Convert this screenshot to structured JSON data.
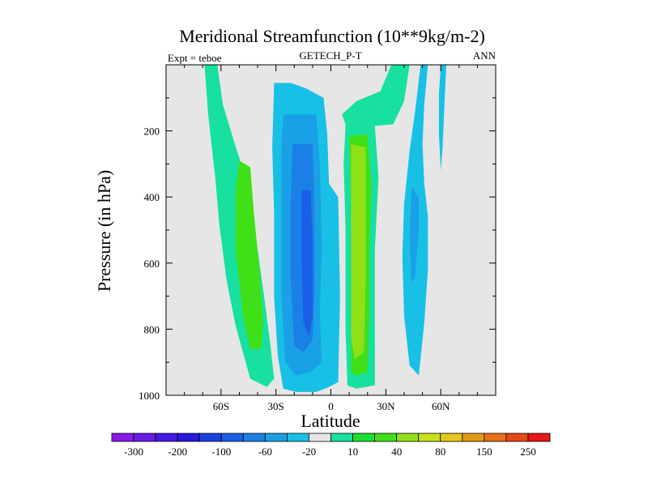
{
  "chart_data": {
    "type": "heatmap",
    "title": "Meridional Streamfunction (10**9kg/m-2)",
    "left_string": "Expt = teboe",
    "center_string": "GETECH_P-T",
    "right_string": "ANN",
    "xlabel": "Latitude",
    "ylabel": "Pressure (in hPa)",
    "xlim": [
      -90,
      90
    ],
    "ylim": [
      1000,
      0
    ],
    "x_ticks": [
      {
        "value": -60,
        "label": "60S"
      },
      {
        "value": -30,
        "label": "30S"
      },
      {
        "value": 0,
        "label": "0"
      },
      {
        "value": 30,
        "label": "30N"
      },
      {
        "value": 60,
        "label": "60N"
      }
    ],
    "y_ticks": [
      {
        "value": 200,
        "label": "200"
      },
      {
        "value": 400,
        "label": "400"
      },
      {
        "value": 600,
        "label": "600"
      },
      {
        "value": 800,
        "label": "800"
      },
      {
        "value": 1000,
        "label": "1000"
      }
    ],
    "background_color": "#e6e6e6",
    "colorbar": {
      "colors": [
        "#8a18e8",
        "#6a1ae8",
        "#4818e6",
        "#2818e0",
        "#1a40e0",
        "#1a60e6",
        "#1a80e6",
        "#1aa0e6",
        "#1ac0e6",
        "#e6e6e6",
        "#18e0a0",
        "#18e030",
        "#40e018",
        "#90e018",
        "#c8e018",
        "#e6c818",
        "#e69818",
        "#e67018",
        "#e64818",
        "#e61818"
      ],
      "labels": [
        {
          "boundary": 1,
          "label": "-300"
        },
        {
          "boundary": 3,
          "label": "-200"
        },
        {
          "boundary": 5,
          "label": "-100"
        },
        {
          "boundary": 7,
          "label": "-60"
        },
        {
          "boundary": 9,
          "label": "-20"
        },
        {
          "boundary": 11,
          "label": "10"
        },
        {
          "boundary": 13,
          "label": "40"
        },
        {
          "boundary": 15,
          "label": "80"
        },
        {
          "boundary": 17,
          "label": "150"
        },
        {
          "boundary": 19,
          "label": "250"
        }
      ]
    },
    "regions": [
      {
        "name": "sh-outer-band",
        "color": "#18e0a0",
        "points": [
          [
            -69,
            0
          ],
          [
            -62,
            0
          ],
          [
            -59,
            120
          ],
          [
            -53,
            230
          ],
          [
            -45,
            370
          ],
          [
            -40,
            560
          ],
          [
            -36,
            720
          ],
          [
            -33,
            850
          ],
          [
            -31,
            950
          ],
          [
            -35,
            975
          ],
          [
            -44,
            950
          ],
          [
            -52,
            790
          ],
          [
            -57,
            650
          ],
          [
            -61,
            480
          ],
          [
            -63,
            350
          ],
          [
            -65,
            250
          ],
          [
            -67,
            150
          ]
        ]
      },
      {
        "name": "sh-inner-core",
        "color": "#40e018",
        "points": [
          [
            -50,
            290
          ],
          [
            -44,
            310
          ],
          [
            -42,
            450
          ],
          [
            -39,
            620
          ],
          [
            -37,
            780
          ],
          [
            -38,
            860
          ],
          [
            -44,
            860
          ],
          [
            -48,
            760
          ],
          [
            -52,
            560
          ],
          [
            -52,
            380
          ]
        ]
      },
      {
        "name": "sh-outer-cell",
        "color": "#18c0e6",
        "points": [
          [
            -31,
            55
          ],
          [
            -22,
            55
          ],
          [
            -14,
            70
          ],
          [
            -4,
            100
          ],
          [
            -2,
            210
          ],
          [
            -1,
            360
          ],
          [
            4,
            400
          ],
          [
            5,
            700
          ],
          [
            4,
            960
          ],
          [
            -1,
            975
          ],
          [
            -8,
            990
          ],
          [
            -19,
            990
          ],
          [
            -26,
            980
          ],
          [
            -29,
            880
          ],
          [
            -31,
            700
          ],
          [
            -31,
            450
          ],
          [
            -32,
            250
          ]
        ]
      },
      {
        "name": "sh-mid-cell",
        "color": "#1aa0e6",
        "points": [
          [
            -26,
            150
          ],
          [
            -8,
            150
          ],
          [
            -6,
            300
          ],
          [
            -5,
            550
          ],
          [
            -6,
            750
          ],
          [
            -5,
            900
          ],
          [
            -11,
            930
          ],
          [
            -19,
            940
          ],
          [
            -25,
            900
          ],
          [
            -27,
            700
          ],
          [
            -27,
            450
          ],
          [
            -27,
            250
          ]
        ]
      },
      {
        "name": "sh-inner-cell",
        "color": "#1a80e6",
        "points": [
          [
            -21,
            240
          ],
          [
            -10,
            240
          ],
          [
            -9,
            420
          ],
          [
            -9,
            700
          ],
          [
            -10,
            830
          ],
          [
            -15,
            870
          ],
          [
            -20,
            850
          ],
          [
            -22,
            650
          ],
          [
            -22,
            420
          ]
        ]
      },
      {
        "name": "sh-core-cell",
        "color": "#1a60e6",
        "points": [
          [
            -16,
            380
          ],
          [
            -11,
            380
          ],
          [
            -10,
            550
          ],
          [
            -10,
            760
          ],
          [
            -12,
            820
          ],
          [
            -15,
            780
          ],
          [
            -16,
            600
          ]
        ]
      },
      {
        "name": "nh-hadley-outer",
        "color": "#18e0a0",
        "points": [
          [
            8,
            180
          ],
          [
            16,
            160
          ],
          [
            24,
            185
          ],
          [
            26,
            340
          ],
          [
            24,
            560
          ],
          [
            24,
            820
          ],
          [
            24,
            970
          ],
          [
            14,
            980
          ],
          [
            9,
            970
          ],
          [
            8,
            800
          ],
          [
            8,
            500
          ],
          [
            7,
            300
          ]
        ]
      },
      {
        "name": "nh-hadley-mid",
        "color": "#40e018",
        "points": [
          [
            10,
            215
          ],
          [
            20,
            210
          ],
          [
            22,
            360
          ],
          [
            21,
            560
          ],
          [
            21,
            760
          ],
          [
            20,
            930
          ],
          [
            14,
            940
          ],
          [
            11,
            930
          ],
          [
            11,
            720
          ],
          [
            11,
            420
          ]
        ]
      },
      {
        "name": "nh-hadley-core",
        "color": "#90e018",
        "points": [
          [
            11,
            240
          ],
          [
            19,
            250
          ],
          [
            19,
            400
          ],
          [
            19,
            640
          ],
          [
            18,
            870
          ],
          [
            13,
            890
          ],
          [
            11,
            830
          ],
          [
            11,
            560
          ],
          [
            11,
            340
          ]
        ]
      },
      {
        "name": "nh-upper-tongue",
        "color": "#18e0a0",
        "points": [
          [
            33,
            0
          ],
          [
            43,
            0
          ],
          [
            40,
            110
          ],
          [
            34,
            180
          ],
          [
            24,
            185
          ],
          [
            16,
            160
          ],
          [
            8,
            180
          ],
          [
            6,
            150
          ],
          [
            14,
            110
          ],
          [
            27,
            80
          ]
        ]
      },
      {
        "name": "nh-ferrel-band",
        "color": "#18c0e6",
        "points": [
          [
            49,
            0
          ],
          [
            53,
            0
          ],
          [
            51,
            120
          ],
          [
            50,
            240
          ],
          [
            51,
            360
          ],
          [
            53,
            460
          ],
          [
            53,
            620
          ],
          [
            51,
            780
          ],
          [
            48,
            940
          ],
          [
            43,
            910
          ],
          [
            40,
            760
          ],
          [
            39,
            580
          ],
          [
            40,
            420
          ],
          [
            43,
            260
          ],
          [
            46,
            140
          ]
        ]
      },
      {
        "name": "nh-ferrel-core",
        "color": "#1aa0e6",
        "points": [
          [
            44,
            370
          ],
          [
            48,
            400
          ],
          [
            48,
            500
          ],
          [
            46,
            640
          ],
          [
            44,
            660
          ],
          [
            43,
            520
          ]
        ]
      },
      {
        "name": "nh-polar-strip",
        "color": "#18c0e6",
        "points": [
          [
            60,
            0
          ],
          [
            63,
            0
          ],
          [
            62,
            120
          ],
          [
            61,
            250
          ],
          [
            60,
            320
          ],
          [
            59,
            210
          ],
          [
            59,
            90
          ]
        ]
      }
    ]
  }
}
